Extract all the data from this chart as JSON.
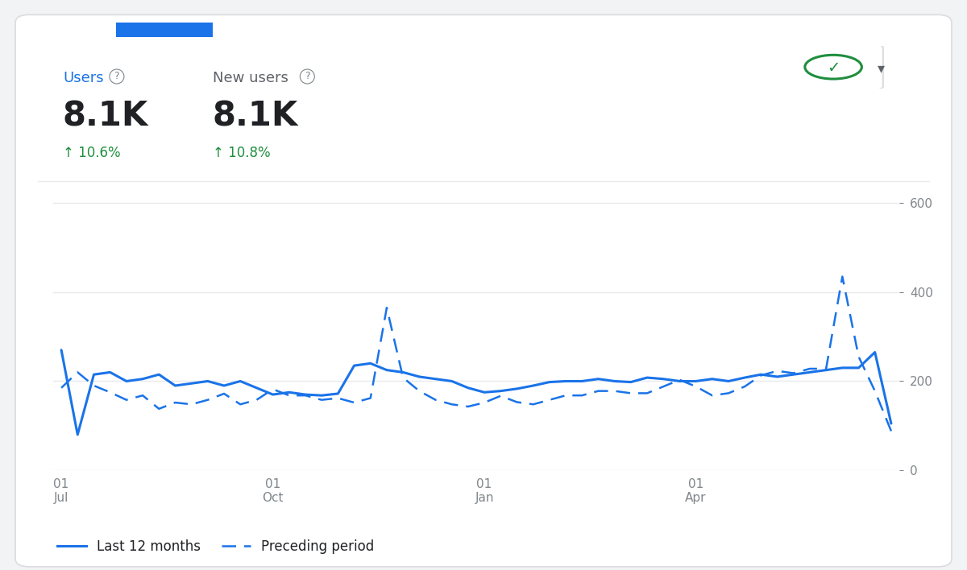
{
  "bg_color": "#f1f3f4",
  "card_color": "#ffffff",
  "line_color": "#1a73e8",
  "title_color": "#1a73e8",
  "metric_color": "#202124",
  "pct_color": "#1e8e3e",
  "axis_label_color": "#80868b",
  "grid_color": "#e8eaed",
  "separator_color": "#e8eaed",
  "users_label": "Users",
  "new_users_label": "New users",
  "users_value": "8.1K",
  "new_users_value": "8.1K",
  "users_pct": "↑ 10.6%",
  "new_users_pct": "↑ 10.8%",
  "legend_solid": "Last 12 months",
  "legend_dashed": "Preceding period",
  "yticks": [
    0,
    200,
    400,
    600
  ],
  "ylim": [
    0,
    640
  ],
  "solid_data": [
    270,
    80,
    215,
    220,
    200,
    205,
    215,
    190,
    195,
    200,
    190,
    200,
    185,
    170,
    175,
    170,
    168,
    172,
    235,
    240,
    225,
    220,
    210,
    205,
    200,
    185,
    175,
    178,
    183,
    190,
    198,
    200,
    200,
    205,
    200,
    198,
    208,
    205,
    200,
    200,
    205,
    200,
    208,
    215,
    210,
    215,
    220,
    225,
    230,
    230,
    265,
    105
  ],
  "dashed_data": [
    185,
    220,
    190,
    175,
    158,
    168,
    138,
    152,
    148,
    158,
    172,
    148,
    158,
    182,
    168,
    168,
    158,
    162,
    152,
    162,
    365,
    208,
    178,
    158,
    148,
    143,
    152,
    167,
    153,
    148,
    158,
    168,
    168,
    178,
    178,
    173,
    173,
    188,
    203,
    188,
    168,
    173,
    188,
    213,
    223,
    218,
    228,
    228,
    435,
    255,
    178,
    88
  ],
  "x_tick_positions": [
    0,
    13,
    26,
    39
  ],
  "x_tick_labels": [
    "01\nJul",
    "01\nOct",
    "01\nJan",
    "01\nApr"
  ]
}
